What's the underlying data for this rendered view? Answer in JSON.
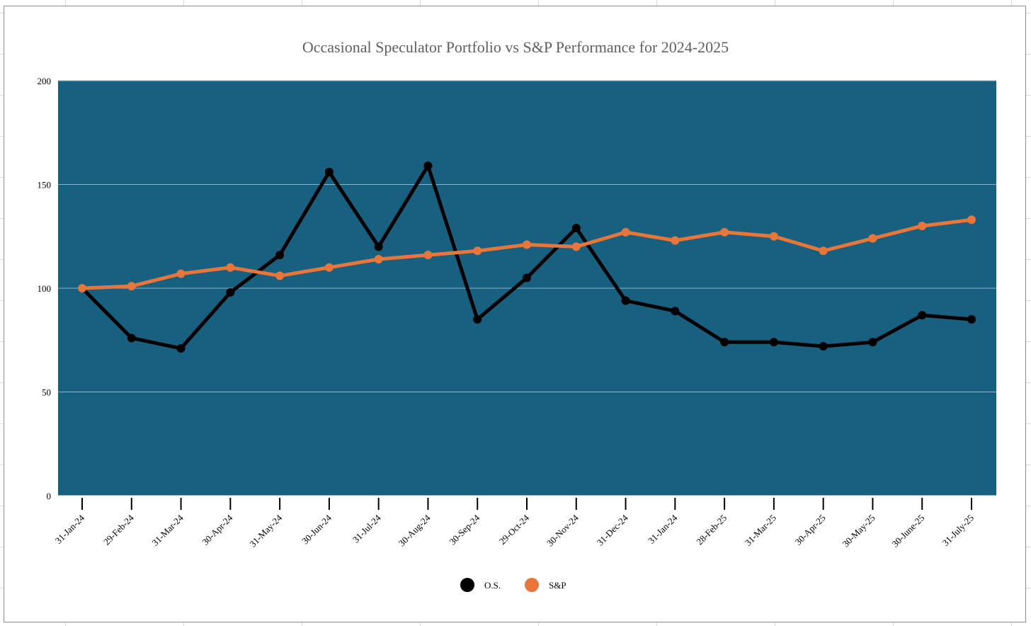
{
  "chart_data": {
    "type": "line",
    "title": "Occasional Speculator Portfolio vs S&P Performance for 2024-2025",
    "xlabel": "",
    "ylabel": "",
    "ylim": [
      0,
      200
    ],
    "yticks": [
      0,
      50,
      100,
      150,
      200
    ],
    "grid": true,
    "legend_position": "bottom",
    "plot_background": "#17607f",
    "categories": [
      "31-Jan-24",
      "29-Feb-24",
      "31-Mar-24",
      "30-Apr-24",
      "31-May-24",
      "30-Jun-24",
      "31-Jul-24",
      "30-Aug-24",
      "30-Sep-24",
      "29-Oct-24",
      "30-Nov-24",
      "31-Dec-24",
      "31-Jan-24",
      "28-Feb-25",
      "31-Mar-25",
      "30-Apr-25",
      "30-May-25",
      "30-June-25",
      "31-July-25"
    ],
    "series": [
      {
        "name": "O.S.",
        "color": "#000000",
        "values": [
          100,
          76,
          71,
          98,
          116,
          156,
          120,
          159,
          85,
          105,
          129,
          94,
          89,
          74,
          74,
          72,
          74,
          87,
          85
        ]
      },
      {
        "name": "S&P",
        "color": "#e8763a",
        "values": [
          100,
          101,
          107,
          110,
          106,
          110,
          114,
          116,
          118,
          121,
          120,
          127,
          123,
          127,
          125,
          118,
          124,
          130,
          133
        ]
      }
    ]
  }
}
